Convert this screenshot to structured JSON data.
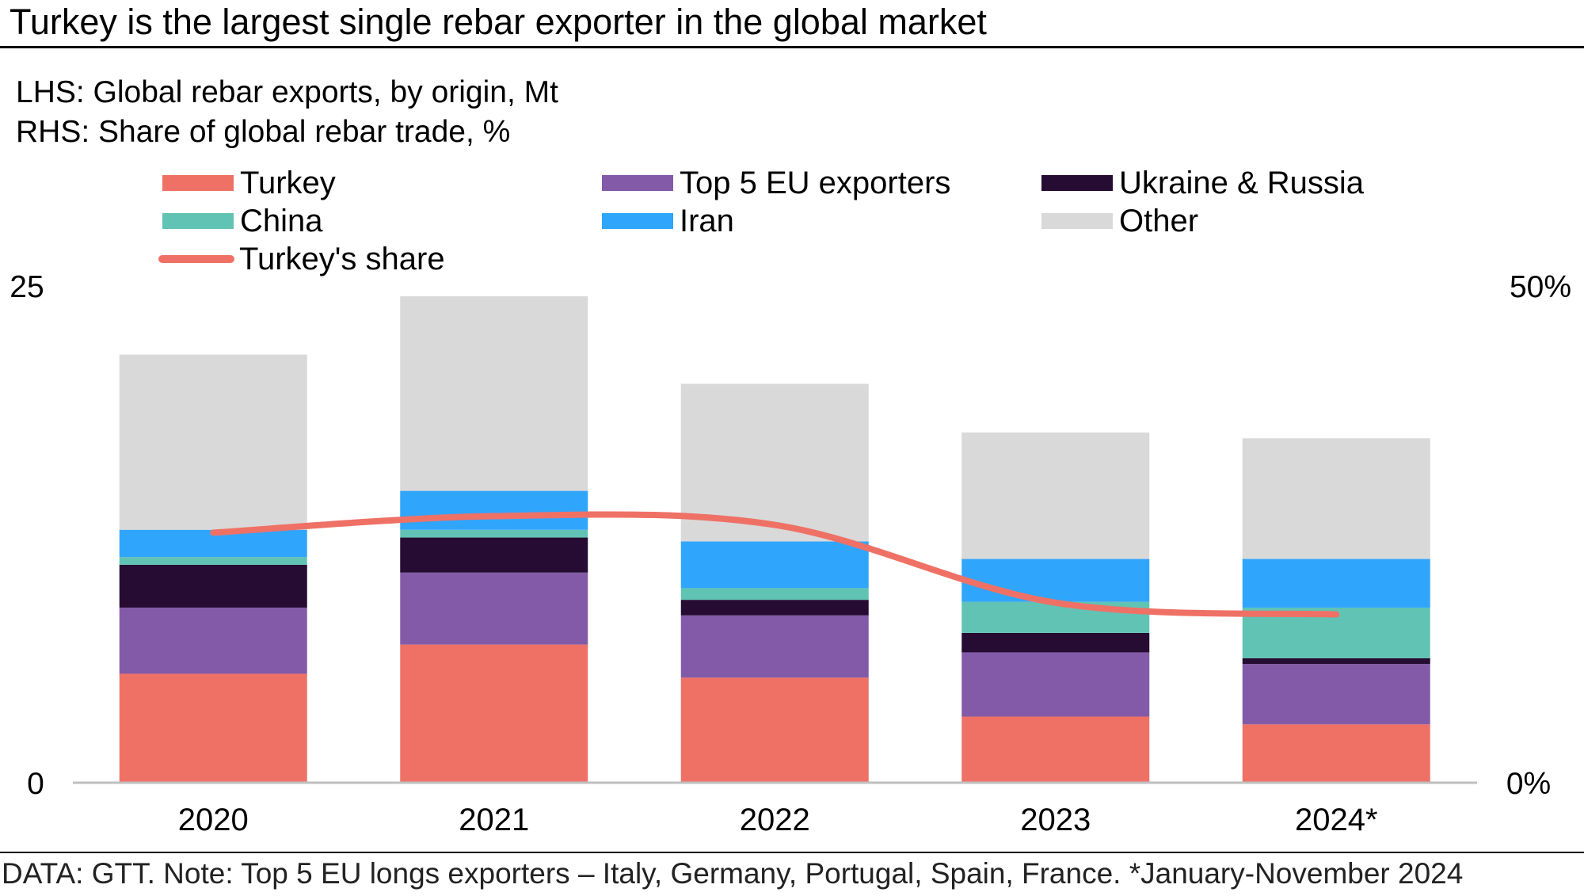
{
  "title": "Turkey is the largest single rebar exporter in the global market",
  "subtitle_lhs": "LHS: Global rebar exports, by origin, Mt",
  "subtitle_rhs": "RHS: Share of global rebar trade, %",
  "footer": "DATA: GTT. Note: Top 5 EU longs exporters – Italy, Germany, Portugal, Spain, France. *January-November 2024",
  "legend": [
    {
      "label": "Turkey",
      "color": "#ef7166",
      "kind": "box"
    },
    {
      "label": "Top 5 EU exporters",
      "color": "#835aa8",
      "kind": "box"
    },
    {
      "label": "Ukraine & Russia",
      "color": "#260b33",
      "kind": "box"
    },
    {
      "label": "China",
      "color": "#61c3b4",
      "kind": "box"
    },
    {
      "label": "Iran",
      "color": "#30a5fc",
      "kind": "box"
    },
    {
      "label": "Other",
      "color": "#d9d9d9",
      "kind": "box"
    },
    {
      "label": "Turkey's share",
      "color": "#ef7166",
      "kind": "line"
    }
  ],
  "chart_data": {
    "type": "bar",
    "stacked": true,
    "categories": [
      "2020",
      "2021",
      "2022",
      "2023",
      "2024*"
    ],
    "series": [
      {
        "name": "Turkey",
        "color": "#ef7166",
        "values": [
          5.6,
          7.1,
          5.4,
          3.4,
          3.0
        ]
      },
      {
        "name": "Top 5 EU exporters",
        "color": "#835aa8",
        "values": [
          3.4,
          3.7,
          3.2,
          3.3,
          3.1
        ]
      },
      {
        "name": "Ukraine & Russia",
        "color": "#260b33",
        "values": [
          2.2,
          1.8,
          0.8,
          1.0,
          0.3
        ]
      },
      {
        "name": "China",
        "color": "#61c3b4",
        "values": [
          0.4,
          0.4,
          0.6,
          1.6,
          2.6
        ]
      },
      {
        "name": "Iran",
        "color": "#30a5fc",
        "values": [
          1.4,
          2.0,
          2.4,
          2.2,
          2.5
        ]
      },
      {
        "name": "Other",
        "color": "#d9d9d9",
        "values": [
          9.0,
          10.0,
          8.1,
          6.5,
          6.2
        ]
      }
    ],
    "line": {
      "name": "Turkey's share",
      "color": "#ef7166",
      "axis": "right",
      "values": [
        25.7,
        27.4,
        26.5,
        18.5,
        17.3
      ]
    },
    "y_left": {
      "min": 0,
      "max": 25,
      "ticks": [
        "0",
        "25"
      ]
    },
    "y_right": {
      "min": 0,
      "max": 50,
      "ticks": [
        "0%",
        "50%"
      ]
    },
    "legend_position": "top"
  }
}
